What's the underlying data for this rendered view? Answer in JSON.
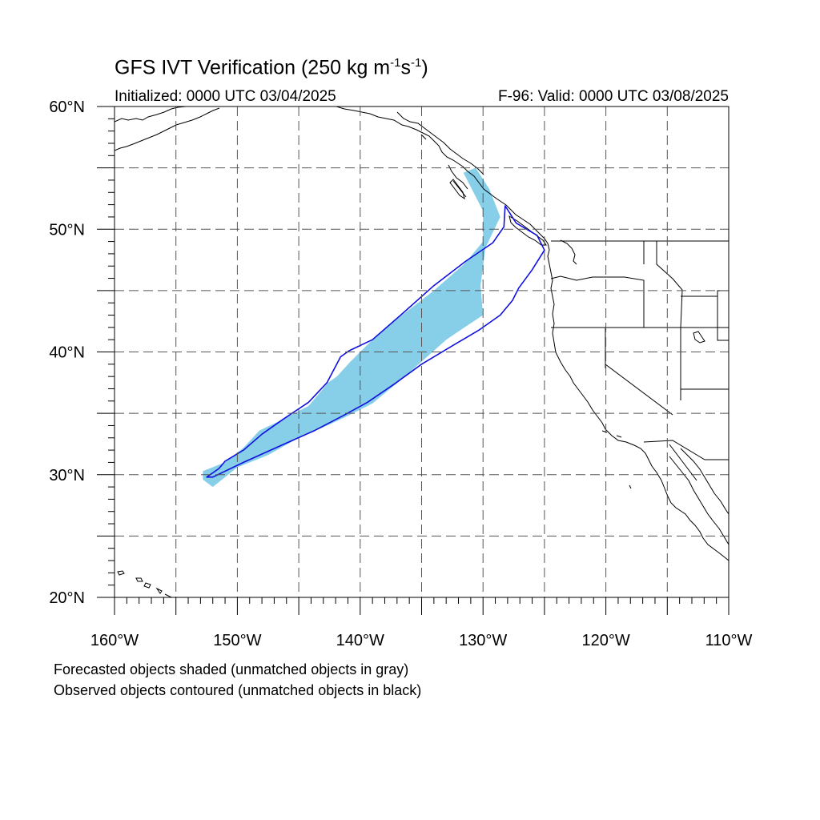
{
  "title": {
    "main": "GFS IVT Verification (250 kg m",
    "sup1": "-1",
    "mid": "s",
    "sup2": "-1",
    "end": ")"
  },
  "subtitle": {
    "left": "Initialized: 0000 UTC 03/04/2025",
    "right": "F-96: Valid: 0000 UTC 03/08/2025"
  },
  "footnotes": {
    "line1": "Forecasted objects shaded (unmatched objects in gray)",
    "line2": "Observed objects contoured (unmatched objects in black)"
  },
  "axes": {
    "lat_labels": [
      "20°N",
      "30°N",
      "40°N",
      "50°N",
      "60°N"
    ],
    "lon_labels": [
      "160°W",
      "150°W",
      "140°W",
      "130°W",
      "120°W",
      "110°W"
    ],
    "lat_range": [
      20,
      60
    ],
    "lon_range": [
      -160,
      -110
    ]
  },
  "colors": {
    "forecast_fill": "#87cfe8",
    "observed_contour": "#1010e0",
    "coast": "#000000",
    "grid": "#555555"
  },
  "forecast_object": {
    "description_hidden": false,
    "polygon_lonlat": [
      [
        -152.8,
        30.3
      ],
      [
        -151.0,
        31.0
      ],
      [
        -149.5,
        32.2
      ],
      [
        -148.2,
        33.6
      ],
      [
        -146.5,
        34.4
      ],
      [
        -144.2,
        35.6
      ],
      [
        -142.6,
        37.5
      ],
      [
        -141.9,
        38.0
      ],
      [
        -140.8,
        39.2
      ],
      [
        -139.0,
        41.0
      ],
      [
        -136.6,
        43.0
      ],
      [
        -134.0,
        45.0
      ],
      [
        -131.5,
        47.2
      ],
      [
        -130.0,
        49.0
      ],
      [
        -130.0,
        51.5
      ],
      [
        -131.6,
        54.6
      ],
      [
        -130.6,
        55.0
      ],
      [
        -129.5,
        53.3
      ],
      [
        -128.6,
        51.0
      ],
      [
        -129.8,
        48.5
      ],
      [
        -130.2,
        45.4
      ],
      [
        -130.0,
        43.0
      ],
      [
        -131.5,
        42.0
      ],
      [
        -133.0,
        41.0
      ],
      [
        -134.9,
        39.3
      ],
      [
        -136.6,
        37.8
      ],
      [
        -139.0,
        35.8
      ],
      [
        -141.0,
        34.8
      ],
      [
        -142.7,
        34.0
      ],
      [
        -145.0,
        33.0
      ],
      [
        -147.5,
        31.6
      ],
      [
        -150.0,
        30.6
      ],
      [
        -152.0,
        29.0
      ],
      [
        -152.8,
        29.6
      ]
    ]
  },
  "observed_object": {
    "polygon_lonlat": [
      [
        -152.5,
        29.8
      ],
      [
        -151.5,
        30.5
      ],
      [
        -151.0,
        31.1
      ],
      [
        -149.5,
        32.0
      ],
      [
        -148.0,
        33.3
      ],
      [
        -146.3,
        34.5
      ],
      [
        -144.2,
        35.9
      ],
      [
        -142.7,
        37.5
      ],
      [
        -141.6,
        39.6
      ],
      [
        -140.9,
        40.1
      ],
      [
        -139.0,
        41.0
      ],
      [
        -136.7,
        43.0
      ],
      [
        -134.0,
        45.4
      ],
      [
        -131.4,
        47.4
      ],
      [
        -129.2,
        48.9
      ],
      [
        -128.3,
        50.2
      ],
      [
        -128.2,
        51.9
      ],
      [
        -127.3,
        50.5
      ],
      [
        -125.6,
        49.5
      ],
      [
        -125.0,
        48.3
      ],
      [
        -126.0,
        46.7
      ],
      [
        -127.1,
        45.2
      ],
      [
        -127.6,
        44.2
      ],
      [
        -128.6,
        43.0
      ],
      [
        -130.3,
        41.8
      ],
      [
        -132.5,
        40.5
      ],
      [
        -135.0,
        39.0
      ],
      [
        -137.2,
        37.4
      ],
      [
        -139.4,
        35.9
      ],
      [
        -141.4,
        34.8
      ],
      [
        -143.7,
        33.6
      ],
      [
        -146.4,
        32.4
      ],
      [
        -149.5,
        31.0
      ],
      [
        -152.0,
        29.8
      ]
    ]
  }
}
